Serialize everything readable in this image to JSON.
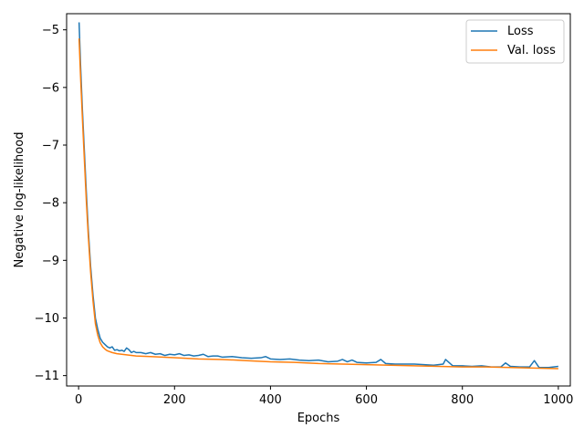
{
  "chart_data": {
    "type": "line",
    "title": "",
    "xlabel": "Epochs",
    "ylabel": "Negative log-likelihood",
    "xlim": [
      -25,
      1025
    ],
    "ylim": [
      -11.18,
      -4.72
    ],
    "xticks": [
      0,
      200,
      400,
      600,
      800,
      1000
    ],
    "xtick_labels": [
      "0",
      "200",
      "400",
      "600",
      "800",
      "1000"
    ],
    "yticks": [
      -5,
      -6,
      -7,
      -8,
      -9,
      -10,
      -11
    ],
    "ytick_labels": [
      "−5",
      "−6",
      "−7",
      "−8",
      "−9",
      "−10",
      "−11"
    ],
    "grid": false,
    "legend_position": "top-right",
    "series": [
      {
        "name": "Loss",
        "color": "#1f77b4",
        "x": [
          1,
          4,
          8,
          12,
          16,
          20,
          25,
          30,
          35,
          40,
          45,
          50,
          55,
          60,
          65,
          70,
          75,
          80,
          85,
          90,
          95,
          100,
          105,
          110,
          115,
          120,
          130,
          140,
          150,
          160,
          170,
          180,
          190,
          200,
          210,
          220,
          230,
          240,
          250,
          260,
          270,
          280,
          290,
          300,
          320,
          340,
          360,
          380,
          390,
          400,
          420,
          440,
          460,
          480,
          500,
          520,
          540,
          550,
          560,
          570,
          580,
          600,
          620,
          630,
          640,
          660,
          680,
          700,
          720,
          740,
          760,
          765,
          780,
          800,
          820,
          840,
          860,
          880,
          890,
          900,
          920,
          940,
          950,
          960,
          980,
          1000
        ],
        "y": [
          -4.87,
          -5.6,
          -6.4,
          -7.1,
          -7.8,
          -8.45,
          -9.1,
          -9.6,
          -10.0,
          -10.2,
          -10.35,
          -10.42,
          -10.46,
          -10.5,
          -10.52,
          -10.5,
          -10.56,
          -10.55,
          -10.57,
          -10.56,
          -10.58,
          -10.52,
          -10.55,
          -10.6,
          -10.58,
          -10.6,
          -10.6,
          -10.62,
          -10.6,
          -10.63,
          -10.62,
          -10.65,
          -10.63,
          -10.64,
          -10.62,
          -10.65,
          -10.64,
          -10.66,
          -10.65,
          -10.63,
          -10.67,
          -10.66,
          -10.66,
          -10.68,
          -10.67,
          -10.69,
          -10.7,
          -10.69,
          -10.67,
          -10.71,
          -10.72,
          -10.71,
          -10.73,
          -10.74,
          -10.73,
          -10.76,
          -10.75,
          -10.72,
          -10.76,
          -10.73,
          -10.77,
          -10.78,
          -10.77,
          -10.72,
          -10.79,
          -10.8,
          -10.8,
          -10.8,
          -10.81,
          -10.82,
          -10.8,
          -10.72,
          -10.83,
          -10.83,
          -10.84,
          -10.83,
          -10.85,
          -10.85,
          -10.78,
          -10.84,
          -10.85,
          -10.85,
          -10.74,
          -10.86,
          -10.86,
          -10.84
        ]
      },
      {
        "name": "Val. loss",
        "color": "#ff7f0e",
        "x": [
          1,
          4,
          8,
          12,
          16,
          20,
          25,
          30,
          35,
          40,
          45,
          50,
          55,
          60,
          70,
          80,
          90,
          100,
          120,
          150,
          200,
          250,
          300,
          350,
          400,
          450,
          500,
          550,
          600,
          650,
          700,
          750,
          800,
          850,
          900,
          950,
          1000
        ],
        "y": [
          -5.15,
          -5.8,
          -6.55,
          -7.25,
          -7.95,
          -8.55,
          -9.2,
          -9.7,
          -10.1,
          -10.3,
          -10.43,
          -10.5,
          -10.54,
          -10.57,
          -10.6,
          -10.62,
          -10.63,
          -10.64,
          -10.66,
          -10.67,
          -10.69,
          -10.71,
          -10.72,
          -10.74,
          -10.76,
          -10.77,
          -10.79,
          -10.8,
          -10.81,
          -10.82,
          -10.83,
          -10.84,
          -10.85,
          -10.85,
          -10.86,
          -10.87,
          -10.88
        ]
      }
    ]
  }
}
